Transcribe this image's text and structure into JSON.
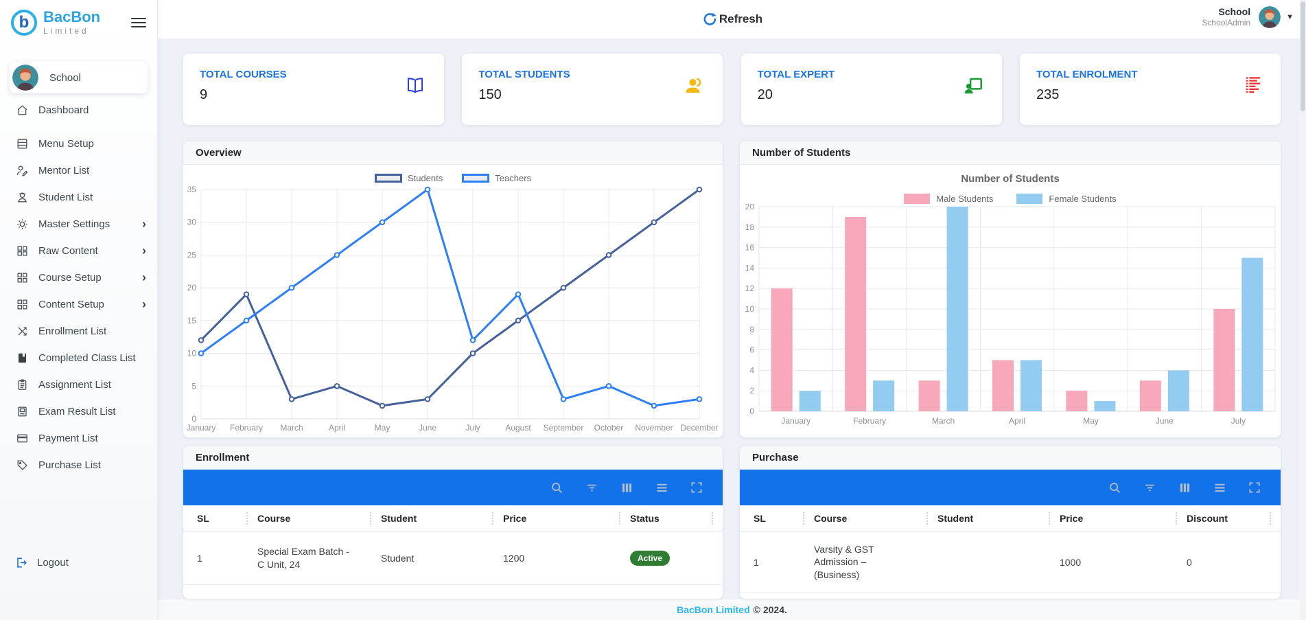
{
  "brand": {
    "logo_letter": "b",
    "name_primary": "BacBon",
    "name_secondary": "Limited"
  },
  "topbar": {
    "refresh_label": "Refresh",
    "user_name": "School",
    "user_role": "SchoolAdmin"
  },
  "sidebar": {
    "school_label": "School",
    "items": [
      {
        "label": "Dashboard"
      },
      {
        "label": "Menu Setup"
      },
      {
        "label": "Mentor List"
      },
      {
        "label": "Student List"
      },
      {
        "label": "Master Settings",
        "expandable": true
      },
      {
        "label": "Raw Content",
        "expandable": true
      },
      {
        "label": "Course Setup",
        "expandable": true
      },
      {
        "label": "Content Setup",
        "expandable": true
      },
      {
        "label": "Enrollment List"
      },
      {
        "label": "Completed Class List"
      },
      {
        "label": "Assignment List"
      },
      {
        "label": "Exam Result List"
      },
      {
        "label": "Payment List"
      },
      {
        "label": "Purchase List"
      }
    ],
    "logout_label": "Logout"
  },
  "cards": [
    {
      "title": "TOTAL COURSES",
      "value": "9",
      "icon": "open-book-icon",
      "icon_color": "#2d3fe0"
    },
    {
      "title": "TOTAL STUDENTS",
      "value": "150",
      "icon": "students-icon",
      "icon_color": "#f5b80c"
    },
    {
      "title": "TOTAL EXPERT",
      "value": "20",
      "icon": "expert-board-icon",
      "icon_color": "#1d9b37"
    },
    {
      "title": "TOTAL ENROLMENT",
      "value": "235",
      "icon": "enrolment-list-icon",
      "icon_color": "#f03030"
    }
  ],
  "panels": {
    "overview_title": "Overview",
    "students_title": "Number of Students",
    "enrollment_title": "Enrollment",
    "purchase_title": "Purchase"
  },
  "chart_data": [
    {
      "type": "line",
      "title": "Overview",
      "x": [
        "January",
        "February",
        "March",
        "April",
        "May",
        "June",
        "July",
        "August",
        "September",
        "October",
        "November",
        "December"
      ],
      "series": [
        {
          "name": "Students",
          "color": "#44619d",
          "values": [
            12,
            19,
            3,
            5,
            2,
            3,
            10,
            15,
            20,
            25,
            30,
            35
          ]
        },
        {
          "name": "Teachers",
          "color": "#2d7ff9",
          "values": [
            10,
            15,
            20,
            25,
            30,
            35,
            12,
            19,
            3,
            5,
            2,
            3
          ]
        }
      ],
      "ylim": [
        0,
        35
      ],
      "ytick_step": 5,
      "grid": true,
      "legend_position": "top"
    },
    {
      "type": "bar",
      "title": "Number of Students",
      "categories": [
        "January",
        "February",
        "March",
        "April",
        "May",
        "June",
        "July"
      ],
      "series": [
        {
          "name": "Male Students",
          "color": "#F7A8BA",
          "values": [
            12,
            19,
            3,
            5,
            2,
            3,
            10
          ]
        },
        {
          "name": "Female Students",
          "color": "#93CBF1",
          "values": [
            2,
            3,
            20,
            5,
            1,
            4,
            15
          ]
        }
      ],
      "ylim": [
        0,
        20
      ],
      "ytick_step": 2,
      "grid": true,
      "legend_position": "top"
    }
  ],
  "enrollment_table": {
    "columns": [
      "SL",
      "Course",
      "Student",
      "Price",
      "Status"
    ],
    "rows": [
      {
        "sl": "1",
        "course": "Special Exam Batch - C Unit, 24",
        "student": "Student",
        "price": "1200",
        "status": "Active"
      }
    ]
  },
  "purchase_table": {
    "columns": [
      "SL",
      "Course",
      "Student",
      "Price",
      "Discount"
    ],
    "rows": [
      {
        "sl": "1",
        "course": "Varsity & GST Admission – (Business)",
        "student": "",
        "price": "1000",
        "discount": "0"
      }
    ]
  },
  "footer": {
    "brand": "BacBon Limited",
    "copyright": "© 2024."
  }
}
